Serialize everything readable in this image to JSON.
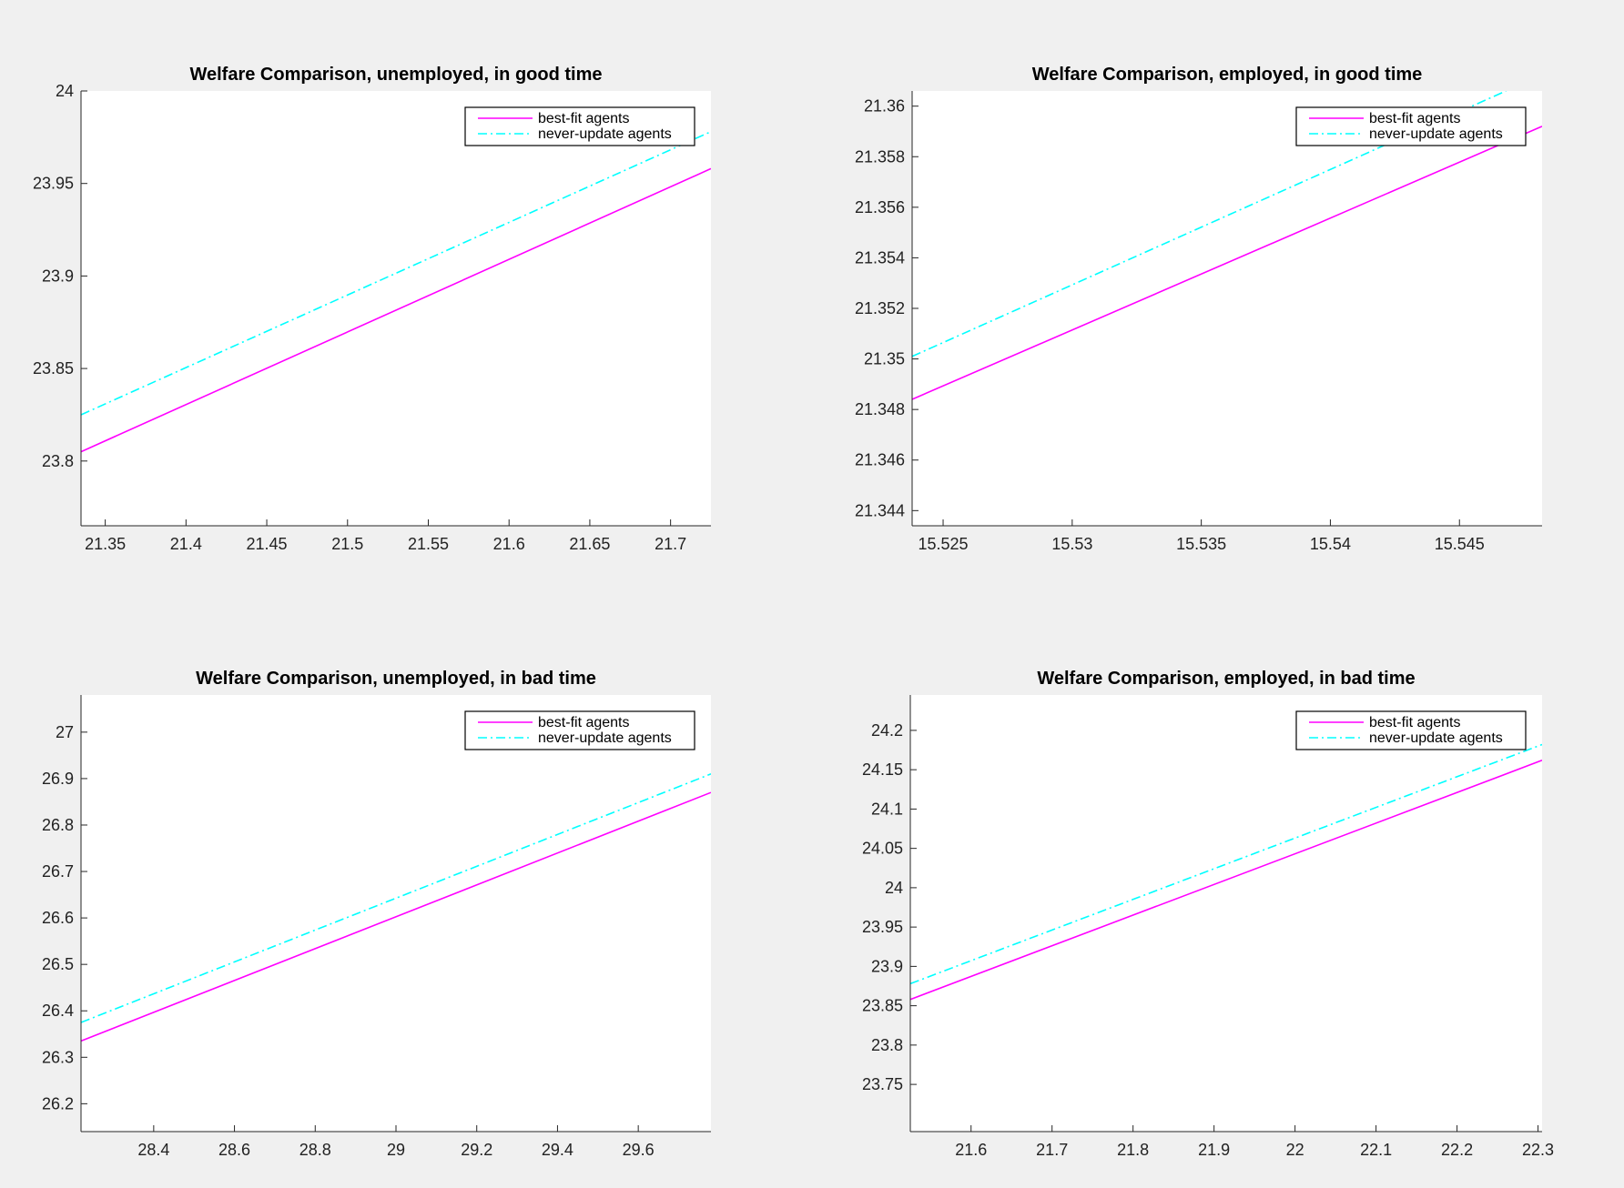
{
  "figure": {
    "background": "#f0f0f0"
  },
  "chart_data": [
    {
      "type": "line",
      "title": "Welfare Comparison, unemployed, in good time",
      "xlabel": "",
      "ylabel": "",
      "xlim": [
        21.335,
        21.725
      ],
      "ylim": [
        23.765,
        24.0
      ],
      "xticks": [
        21.35,
        21.4,
        21.45,
        21.5,
        21.55,
        21.6,
        21.65,
        21.7
      ],
      "xtick_labels": [
        "21.35",
        "21.4",
        "21.45",
        "21.5",
        "21.55",
        "21.6",
        "21.65",
        "21.7"
      ],
      "yticks": [
        23.8,
        23.85,
        23.9,
        23.95,
        24.0
      ],
      "ytick_labels": [
        "23.8",
        "23.85",
        "23.9",
        "23.95",
        "24"
      ],
      "grid": false,
      "legend_position": "top-right",
      "series": [
        {
          "name": "best-fit agents",
          "color": "#ff00ff",
          "dash": "solid",
          "x": [
            21.335,
            21.725
          ],
          "y": [
            23.805,
            23.958
          ]
        },
        {
          "name": "never-update agents",
          "color": "#00ffff",
          "dash": "dashdot",
          "x": [
            21.335,
            21.725
          ],
          "y": [
            23.825,
            23.978
          ]
        }
      ]
    },
    {
      "type": "line",
      "title": "Welfare Comparison, employed, in good time",
      "xlabel": "",
      "ylabel": "",
      "xlim": [
        15.5238,
        15.5482
      ],
      "ylim": [
        21.3434,
        21.3606
      ],
      "xticks": [
        15.525,
        15.53,
        15.535,
        15.54,
        15.545
      ],
      "xtick_labels": [
        "15.525",
        "15.53",
        "15.535",
        "15.54",
        "15.545"
      ],
      "yticks": [
        21.344,
        21.346,
        21.348,
        21.35,
        21.352,
        21.354,
        21.356,
        21.358,
        21.36
      ],
      "ytick_labels": [
        "21.344",
        "21.346",
        "21.348",
        "21.35",
        "21.352",
        "21.354",
        "21.356",
        "21.358",
        "21.36"
      ],
      "grid": false,
      "legend_position": "top-right",
      "series": [
        {
          "name": "best-fit agents",
          "color": "#ff00ff",
          "dash": "solid",
          "x": [
            15.5238,
            15.5482
          ],
          "y": [
            21.3484,
            21.3592
          ]
        },
        {
          "name": "never-update agents",
          "color": "#00ffff",
          "dash": "dashdot",
          "x": [
            15.5238,
            15.5468
          ],
          "y": [
            21.3501,
            21.3606
          ]
        }
      ]
    },
    {
      "type": "line",
      "title": "Welfare Comparison, unemployed, in bad time",
      "xlabel": "",
      "ylabel": "",
      "xlim": [
        28.22,
        29.78
      ],
      "ylim": [
        26.14,
        27.08
      ],
      "xticks": [
        28.4,
        28.6,
        28.8,
        29.0,
        29.2,
        29.4,
        29.6
      ],
      "xtick_labels": [
        "28.4",
        "28.6",
        "28.8",
        "29",
        "29.2",
        "29.4",
        "29.6"
      ],
      "yticks": [
        26.2,
        26.3,
        26.4,
        26.5,
        26.6,
        26.7,
        26.8,
        26.9,
        27.0
      ],
      "ytick_labels": [
        "26.2",
        "26.3",
        "26.4",
        "26.5",
        "26.6",
        "26.7",
        "26.8",
        "26.9",
        "27"
      ],
      "grid": false,
      "legend_position": "top-right",
      "series": [
        {
          "name": "best-fit agents",
          "color": "#ff00ff",
          "dash": "solid",
          "x": [
            28.22,
            29.78
          ],
          "y": [
            26.335,
            26.87
          ]
        },
        {
          "name": "never-update agents",
          "color": "#00ffff",
          "dash": "dashdot",
          "x": [
            28.22,
            29.78
          ],
          "y": [
            26.375,
            26.91
          ]
        }
      ]
    },
    {
      "type": "line",
      "title": "Welfare Comparison, employed, in bad time",
      "xlabel": "",
      "ylabel": "",
      "xlim": [
        21.525,
        22.305
      ],
      "ylim": [
        23.69,
        24.245
      ],
      "xticks": [
        21.6,
        21.7,
        21.8,
        21.9,
        22.0,
        22.1,
        22.2,
        22.3
      ],
      "xtick_labels": [
        "21.6",
        "21.7",
        "21.8",
        "21.9",
        "22",
        "22.1",
        "22.2",
        "22.3"
      ],
      "yticks": [
        23.75,
        23.8,
        23.85,
        23.9,
        23.95,
        24.0,
        24.05,
        24.1,
        24.15,
        24.2
      ],
      "ytick_labels": [
        "23.75",
        "23.8",
        "23.85",
        "23.9",
        "23.95",
        "24",
        "24.05",
        "24.1",
        "24.15",
        "24.2"
      ],
      "grid": false,
      "legend_position": "top-right",
      "series": [
        {
          "name": "best-fit agents",
          "color": "#ff00ff",
          "dash": "solid",
          "x": [
            21.525,
            22.305
          ],
          "y": [
            23.858,
            24.162
          ]
        },
        {
          "name": "never-update agents",
          "color": "#00ffff",
          "dash": "dashdot",
          "x": [
            21.525,
            22.305
          ],
          "y": [
            23.878,
            24.182
          ]
        }
      ]
    }
  ]
}
